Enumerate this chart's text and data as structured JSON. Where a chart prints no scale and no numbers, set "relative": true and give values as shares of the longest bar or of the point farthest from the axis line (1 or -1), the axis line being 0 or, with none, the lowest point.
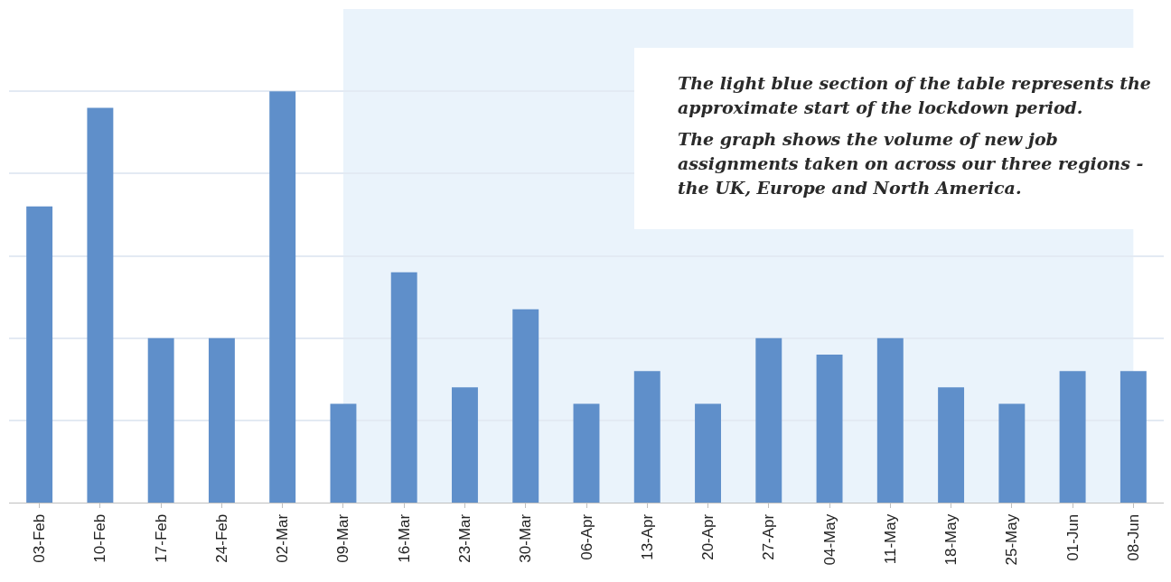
{
  "chart_data": {
    "type": "bar",
    "relative": true,
    "grid": "y",
    "color": "#5f8fca",
    "categories": [
      "03-Feb",
      "10-Feb",
      "17-Feb",
      "24-Feb",
      "02-Mar",
      "09-Mar",
      "16-Mar",
      "23-Mar",
      "30-Mar",
      "06-Apr",
      "13-Apr",
      "20-Apr",
      "27-Apr",
      "04-May",
      "11-May",
      "18-May",
      "25-May",
      "01-Jun",
      "08-Jun"
    ],
    "values": [
      0.72,
      0.96,
      0.4,
      0.4,
      1,
      0.24,
      0.56,
      0.28,
      0.47,
      0.24,
      0.32,
      0.24,
      0.4,
      0.36,
      0.4,
      0.28,
      0.24,
      0.32,
      0.32
    ],
    "bands": [
      {
        "axis": "x",
        "from": "09-Mar",
        "to": "08-Jun",
        "color": "#eaf3fb"
      }
    ],
    "annotations": [
      "The light blue section of the table represents the approximate start of the lockdown period.",
      "The graph shows the volume of new job assignments taken on across our three regions - the UK, Europe and North America."
    ]
  }
}
